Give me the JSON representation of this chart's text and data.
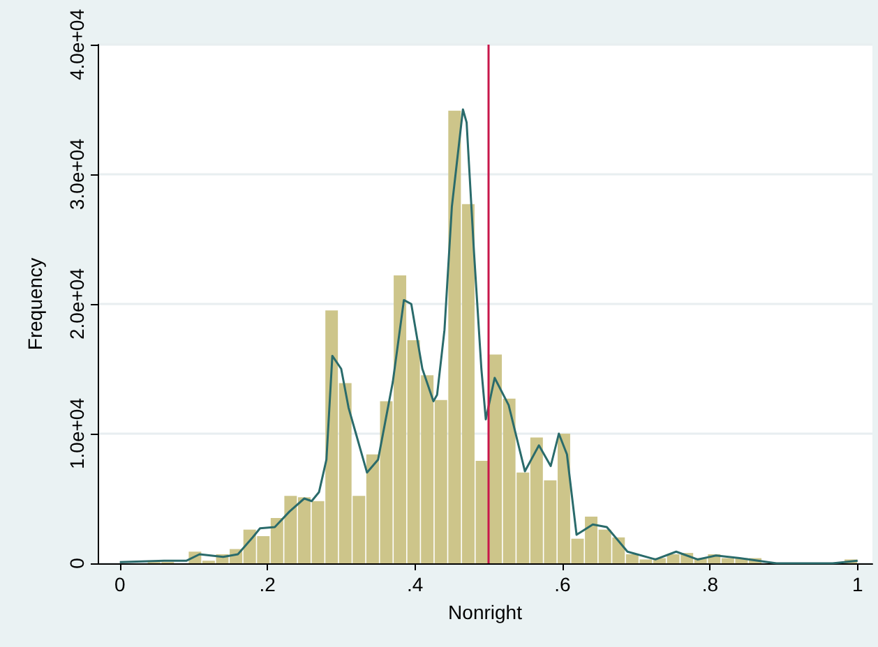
{
  "chart_data": {
    "type": "histogram",
    "xlabel": "Nonright",
    "ylabel": "Frequency",
    "bins": [
      0,
      0.0185,
      0.037,
      0.0556,
      0.0741,
      0.0926,
      0.1111,
      0.1296,
      0.1481,
      0.1667,
      0.1852,
      0.2037,
      0.2222,
      0.2407,
      0.2593,
      0.2778,
      0.2963,
      0.3148,
      0.3333,
      0.3519,
      0.3704,
      0.3889,
      0.4074,
      0.4259,
      0.4444,
      0.463,
      0.4815,
      0.5,
      0.5185,
      0.537,
      0.5556,
      0.5741,
      0.5926,
      0.6111,
      0.6296,
      0.6481,
      0.6667,
      0.6852,
      0.7037,
      0.7222,
      0.7407,
      0.7593,
      0.7778,
      0.7963,
      0.8148,
      0.8333,
      0.8519,
      0.8704,
      0.8889,
      0.9074,
      0.9259,
      0.9444,
      0.963,
      0.9815,
      1
    ],
    "values": [
      null,
      0,
      100,
      100,
      0,
      900,
      200,
      700,
      1100,
      2600,
      2100,
      3500,
      5200,
      5100,
      4800,
      19500,
      13900,
      5200,
      8400,
      12500,
      22200,
      17200,
      14500,
      12600,
      34900,
      27700,
      7900,
      16100,
      12700,
      7000,
      9700,
      6400,
      10000,
      1900,
      3600,
      2600,
      2000,
      700,
      300,
      400,
      700,
      800,
      400,
      700,
      400,
      400,
      400,
      null,
      null,
      null,
      null,
      null,
      null,
      300
    ],
    "color": "#cdc58a",
    "series": [
      {
        "type": "line",
        "color": "#2a6b6b",
        "x": [
          0,
          0.06,
          0.09,
          0.108,
          0.14,
          0.16,
          0.18,
          0.19,
          0.21,
          0.23,
          0.25,
          0.26,
          0.27,
          0.28,
          0.288,
          0.3,
          0.31,
          0.32,
          0.335,
          0.35,
          0.37,
          0.385,
          0.395,
          0.41,
          0.425,
          0.43,
          0.44,
          0.45,
          0.465,
          0.47,
          0.48,
          0.49,
          0.496,
          0.508,
          0.527,
          0.549,
          0.568,
          0.584,
          0.595,
          0.606,
          0.619,
          0.641,
          0.66,
          0.688,
          0.726,
          0.754,
          0.783,
          0.808,
          0.84,
          0.89,
          0.966,
          1
        ],
        "values": [
          100,
          200,
          200,
          700,
          500,
          700,
          2000,
          2700,
          2800,
          4000,
          5000,
          4800,
          5500,
          8000,
          16000,
          15000,
          12000,
          10000,
          7000,
          8000,
          14000,
          20300,
          20000,
          15000,
          12500,
          13000,
          18000,
          27500,
          35000,
          34000,
          24000,
          15000,
          11100,
          14300,
          12200,
          7100,
          9100,
          7500,
          10000,
          8400,
          2200,
          3000,
          2800,
          900,
          300,
          900,
          300,
          600,
          400,
          0,
          0,
          200
        ]
      }
    ],
    "ref_lines": [
      {
        "axis": "x",
        "value": 0.5,
        "color": "#c8174b"
      }
    ],
    "xlim": [
      -0.03,
      1.02
    ],
    "xticks": [
      0,
      {
        "value": 0.2,
        "label": ".2"
      },
      {
        "value": 0.4,
        "label": ".4"
      },
      {
        "value": 0.6,
        "label": ".6"
      },
      {
        "value": 0.8,
        "label": ".8"
      },
      1
    ],
    "ylim": [
      0,
      40000
    ],
    "yticks": [
      0,
      {
        "value": 10000,
        "label": "1.0e+04"
      },
      {
        "value": 20000,
        "label": "2.0e+04"
      },
      {
        "value": 30000,
        "label": "3.0e+04"
      },
      {
        "value": 40000,
        "label": "4.0e+04"
      }
    ],
    "grid": "y"
  }
}
